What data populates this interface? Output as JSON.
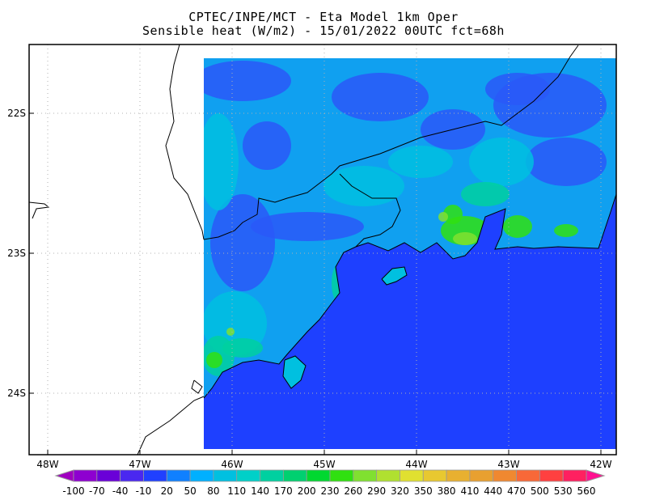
{
  "title": {
    "line1": "CPTEC/INPE/MCT -   Eta Model 1km Oper",
    "line2": "Sensible heat (W/m2) - 15/01/2022 00UTC fct=68h"
  },
  "chart_data": {
    "type": "heatmap",
    "title": "CPTEC/INPE/MCT -   Eta Model 1km Oper / Sensible heat (W/m2) - 15/01/2022 00UTC fct=68h",
    "xlim": [
      -48.2,
      -41.85
    ],
    "ylim": [
      -24.45,
      -21.5
    ],
    "grid": true,
    "x_ticks": [
      {
        "value": -48,
        "label": "48W"
      },
      {
        "value": -47,
        "label": "47W"
      },
      {
        "value": -46,
        "label": "46W"
      },
      {
        "value": -45,
        "label": "45W"
      },
      {
        "value": -44,
        "label": "44W"
      },
      {
        "value": -43,
        "label": "43W"
      },
      {
        "value": -42,
        "label": "42W"
      }
    ],
    "y_ticks": [
      {
        "value": -22,
        "label": "22S"
      },
      {
        "value": -23,
        "label": "23S"
      },
      {
        "value": -24,
        "label": "24S"
      }
    ],
    "colorbar": {
      "levels": [
        "-100",
        "-70",
        "-40",
        "-10",
        "20",
        "50",
        "80",
        "110",
        "140",
        "170",
        "200",
        "230",
        "260",
        "290",
        "320",
        "350",
        "380",
        "410",
        "440",
        "470",
        "500",
        "530",
        "560"
      ],
      "colors": [
        "#8e00d0",
        "#6a00d8",
        "#4a28f0",
        "#2040ff",
        "#1080ff",
        "#00b0ff",
        "#00c0e0",
        "#00d0c8",
        "#00d0a0",
        "#00d070",
        "#00d830",
        "#30e010",
        "#80e030",
        "#b0e030",
        "#e0e030",
        "#e8c830",
        "#e8b030",
        "#e8a030",
        "#f08830",
        "#f86838",
        "#ff4040",
        "#ff2060"
      ],
      "under_color": "#a000c0",
      "over_color": "#ff1090"
    },
    "ocean_color": "#1e40ff",
    "land_base_color": "#10a0f0"
  }
}
